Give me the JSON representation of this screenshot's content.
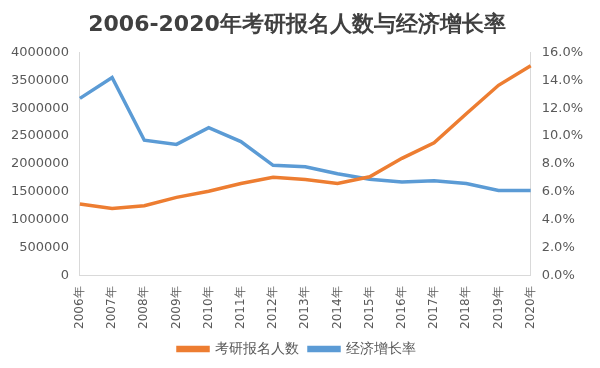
{
  "chart_data": {
    "type": "line",
    "title": "2006-2020年考研报名人数与经济增长率",
    "categories": [
      "2006年",
      "2007年",
      "2008年",
      "2009年",
      "2010年",
      "2011年",
      "2012年",
      "2013年",
      "2014年",
      "2015年",
      "2016年",
      "2017年",
      "2018年",
      "2019年",
      "2020年"
    ],
    "series": [
      {
        "name": "考研报名人数",
        "color": "#ed7d31",
        "axis": "y",
        "values": [
          1280000,
          1200000,
          1250000,
          1400000,
          1510000,
          1650000,
          1760000,
          1720000,
          1650000,
          1770000,
          2100000,
          2380000,
          2900000,
          3410000,
          3760000
        ]
      },
      {
        "name": "经济增长率",
        "color": "#5b9bd5",
        "axis": "y2",
        "values": [
          12.7,
          14.2,
          9.7,
          9.4,
          10.6,
          9.6,
          7.9,
          7.8,
          7.3,
          6.9,
          6.7,
          6.8,
          6.6,
          6.1,
          6.1
        ]
      }
    ],
    "ylim": [
      0,
      4000000
    ],
    "yticks": [
      0,
      500000,
      1000000,
      1500000,
      2000000,
      2500000,
      3000000,
      3500000,
      4000000
    ],
    "y2lim": [
      0,
      16
    ],
    "y2ticks": [
      {
        "value": 0,
        "label": "0.0%"
      },
      {
        "value": 2,
        "label": "2.0%"
      },
      {
        "value": 4,
        "label": "4.0%"
      },
      {
        "value": 6,
        "label": "6.0%"
      },
      {
        "value": 8,
        "label": "8.0%"
      },
      {
        "value": 10,
        "label": "10.0%"
      },
      {
        "value": 12,
        "label": "12.0%"
      },
      {
        "value": 14,
        "label": "14.0%"
      },
      {
        "value": 16,
        "label": "16.0%"
      }
    ],
    "grid": false,
    "legend": "bottom"
  }
}
